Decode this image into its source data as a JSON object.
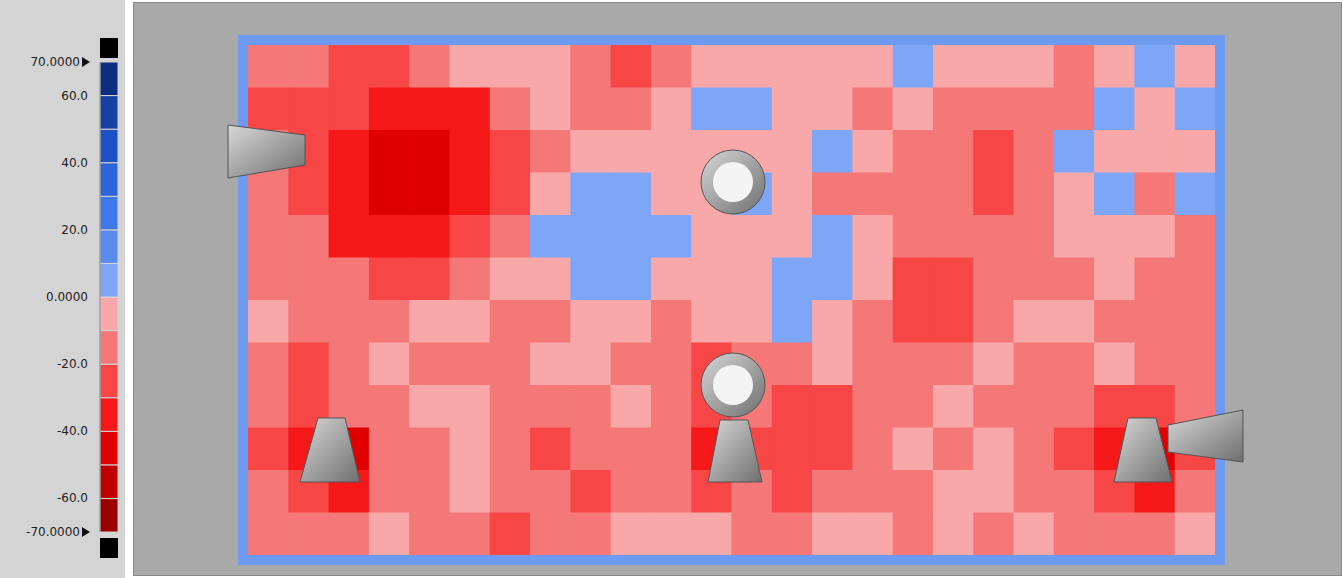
{
  "chart_data": {
    "type": "heatmap",
    "tick_labels": false,
    "cells": [
      [
        -15,
        -15,
        -25,
        -25,
        -15,
        -5,
        -5,
        -5,
        -15,
        -25,
        -15,
        -5,
        -5,
        -5,
        -5,
        -5,
        5,
        -5,
        -5,
        -5,
        -15,
        -5,
        5,
        -5
      ],
      [
        -25,
        -25,
        -25,
        -35,
        -35,
        -35,
        -15,
        -5,
        -15,
        -15,
        -5,
        5,
        5,
        -5,
        -5,
        -15,
        -5,
        -15,
        -15,
        -15,
        -15,
        5,
        -5,
        5
      ],
      [
        -15,
        -25,
        -35,
        -45,
        -45,
        -35,
        -25,
        -15,
        -5,
        -5,
        -5,
        -5,
        -5,
        -5,
        5,
        -5,
        -15,
        -15,
        -25,
        -15,
        5,
        -5,
        -5,
        -5
      ],
      [
        -15,
        -25,
        -35,
        -45,
        -45,
        -35,
        -25,
        -5,
        5,
        5,
        -5,
        -5,
        5,
        -5,
        -15,
        -15,
        -15,
        -15,
        -25,
        -15,
        -5,
        5,
        -15,
        5
      ],
      [
        -15,
        -15,
        -35,
        -35,
        -35,
        -25,
        -15,
        5,
        5,
        5,
        5,
        -5,
        -5,
        -5,
        5,
        -5,
        -15,
        -15,
        -15,
        -15,
        -5,
        -5,
        -5,
        -15
      ],
      [
        -15,
        -15,
        -15,
        -25,
        -25,
        -15,
        -5,
        -5,
        5,
        5,
        -5,
        -5,
        -5,
        5,
        5,
        -5,
        -25,
        -25,
        -15,
        -15,
        -15,
        -5,
        -15,
        -15
      ],
      [
        -5,
        -15,
        -15,
        -15,
        -5,
        -5,
        -15,
        -15,
        -5,
        -5,
        -15,
        -5,
        -5,
        5,
        -5,
        -15,
        -25,
        -25,
        -15,
        -5,
        -5,
        -15,
        -15,
        -15
      ],
      [
        -15,
        -25,
        -15,
        -5,
        -15,
        -15,
        -15,
        -5,
        -5,
        -15,
        -15,
        -25,
        -15,
        -15,
        -5,
        -15,
        -15,
        -15,
        -5,
        -15,
        -15,
        -5,
        -15,
        -15
      ],
      [
        -15,
        -25,
        -15,
        -15,
        -5,
        -5,
        -15,
        -15,
        -15,
        -5,
        -15,
        -25,
        -15,
        -25,
        -25,
        -15,
        -15,
        -5,
        -15,
        -15,
        -15,
        -25,
        -25,
        -15
      ],
      [
        -25,
        -35,
        -45,
        -15,
        -15,
        -5,
        -15,
        -25,
        -15,
        -15,
        -15,
        -35,
        -25,
        -25,
        -25,
        -15,
        -5,
        -15,
        -5,
        -15,
        -25,
        -35,
        -45,
        -25
      ],
      [
        -15,
        -25,
        -35,
        -15,
        -15,
        -5,
        -15,
        -15,
        -25,
        -15,
        -15,
        -25,
        -15,
        -25,
        -15,
        -15,
        -15,
        -5,
        -5,
        -15,
        -15,
        -25,
        -35,
        -15
      ],
      [
        -15,
        -15,
        -15,
        -5,
        -15,
        -15,
        -25,
        -15,
        -15,
        -5,
        -5,
        -5,
        -15,
        -15,
        -5,
        -5,
        -15,
        -5,
        -15,
        -5,
        -15,
        -15,
        -15,
        -5
      ]
    ],
    "colorbar_range": [
      -70,
      70
    ],
    "colorbar_ticks": [
      {
        "value": 70,
        "label": "70.0000"
      },
      {
        "value": 60,
        "label": "60.0"
      },
      {
        "value": 40,
        "label": "40.0"
      },
      {
        "value": 20,
        "label": "20.0"
      },
      {
        "value": 0,
        "label": "0.0000"
      },
      {
        "value": -20,
        "label": "-20.0"
      },
      {
        "value": -40,
        "label": "-40.0"
      },
      {
        "value": -60,
        "label": "-60.0"
      },
      {
        "value": -70,
        "label": "-70.0000"
      }
    ]
  }
}
